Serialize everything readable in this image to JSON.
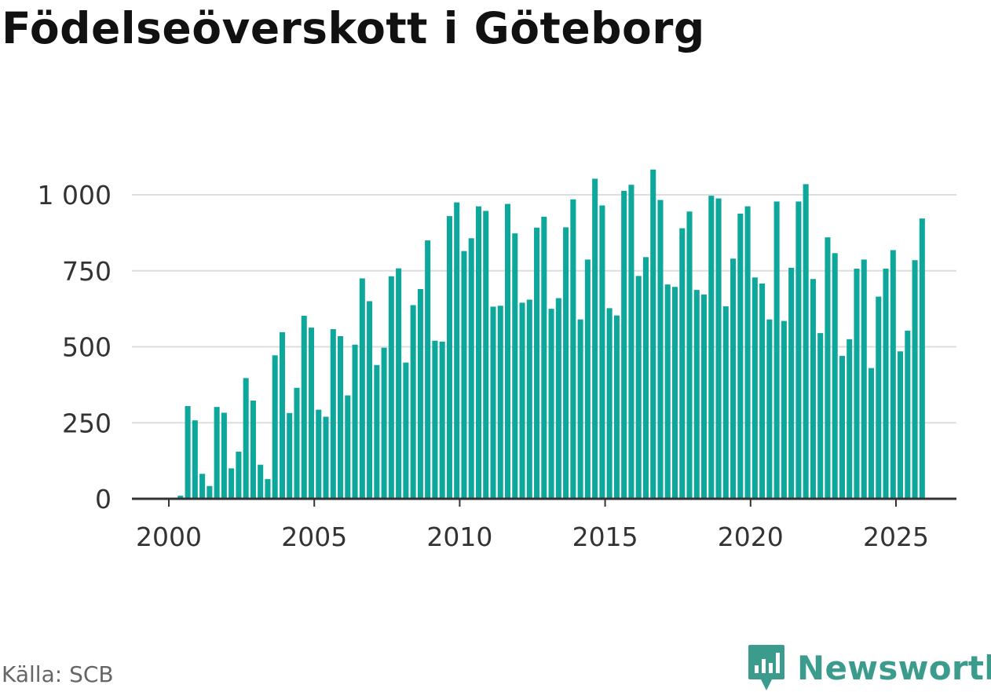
{
  "chart_data": {
    "type": "bar",
    "title": "Födelseöverskott i Göteborg",
    "xlabel": "",
    "ylabel": "",
    "ylim": [
      0,
      1080
    ],
    "y_ticks": [
      0,
      250,
      500,
      750,
      1000
    ],
    "y_tick_labels": [
      "0",
      "250",
      "500",
      "750",
      "1 000"
    ],
    "x_ticks": [
      2000,
      2005,
      2010,
      2015,
      2020,
      2025
    ],
    "x_tick_labels": [
      "2000",
      "2005",
      "2010",
      "2015",
      "2020",
      "2025"
    ],
    "bar_color": "#0ea79b",
    "start_year": 2000,
    "periods_per_year": 4,
    "values": [
      0,
      10,
      305,
      258,
      82,
      42,
      302,
      283,
      100,
      155,
      397,
      323,
      112,
      65,
      472,
      548,
      282,
      365,
      602,
      563,
      293,
      270,
      558,
      535,
      340,
      507,
      725,
      650,
      440,
      497,
      732,
      758,
      448,
      637,
      690,
      850,
      520,
      517,
      930,
      975,
      815,
      857,
      962,
      947,
      632,
      635,
      970,
      873,
      645,
      655,
      892,
      928,
      625,
      660,
      893,
      985,
      590,
      787,
      1053,
      965,
      627,
      603,
      1013,
      1033,
      733,
      795,
      1083,
      983,
      705,
      697,
      890,
      945,
      687,
      672,
      997,
      988,
      633,
      790,
      938,
      962,
      728,
      708,
      590,
      978,
      585,
      760,
      978,
      1035,
      723,
      545,
      860,
      808,
      470,
      525,
      757,
      787,
      430,
      665,
      757,
      818,
      485,
      553,
      785,
      922
    ]
  },
  "source": "Källa: SCB",
  "brand": "Newsworthy"
}
